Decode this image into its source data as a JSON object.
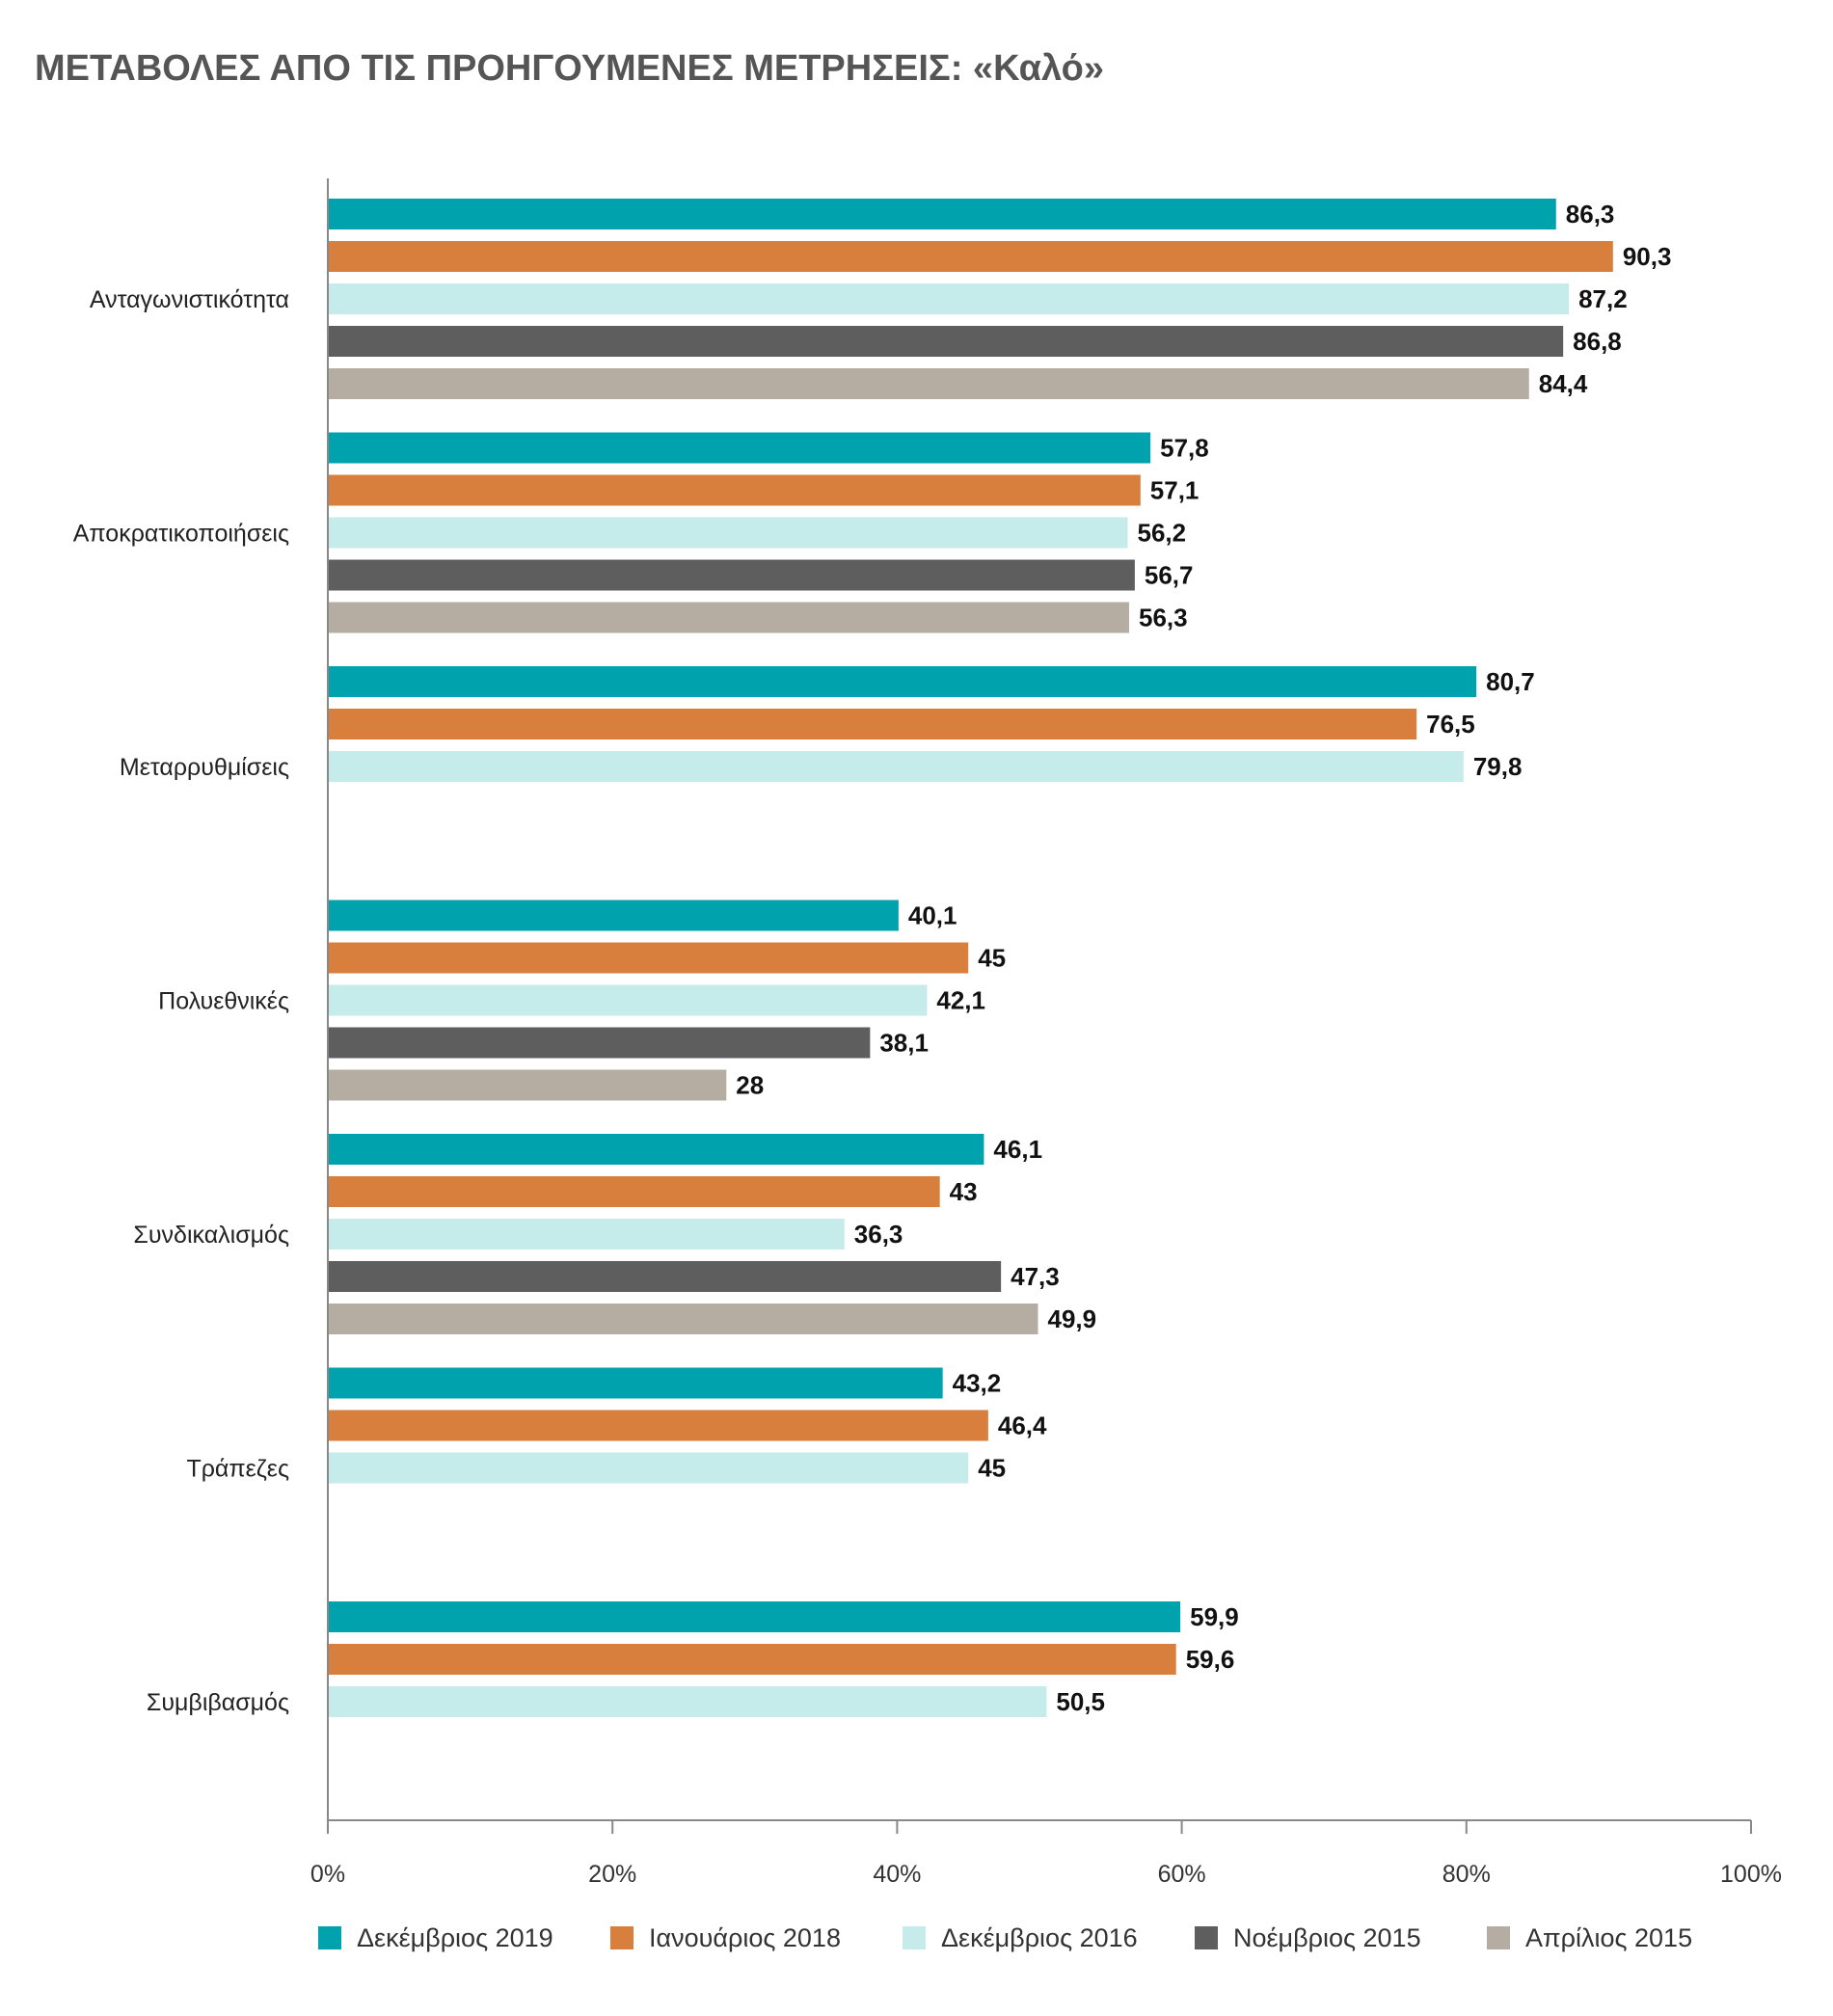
{
  "chart_data": {
    "type": "bar",
    "orientation": "horizontal",
    "title": "ΜΕΤΑΒΟΛΕΣ ΑΠΟ ΤΙΣ ΠΡΟΗΓΟΥΜΕΝΕΣ ΜΕΤΡΗΣΕΙΣ: «Καλό»",
    "categories": [
      "Ανταγωνιστικότητα",
      "Αποκρατικοποιήσεις",
      "Μεταρρυθμίσεις",
      "Πολυεθνικές",
      "Συνδικαλισμός",
      "Τράπεζες",
      "Συμβιβασμός"
    ],
    "series": [
      {
        "name": "Δεκέμβριος 2019",
        "color": "#00a3ad",
        "values": [
          86.3,
          57.8,
          80.7,
          40.1,
          46.1,
          43.2,
          59.9
        ],
        "labels": [
          "86,3",
          "57,8",
          "80,7",
          "40,1",
          "46,1",
          "43,2",
          "59,9"
        ]
      },
      {
        "name": "Ιανουάριος 2018",
        "color": "#d97f3d",
        "values": [
          90.3,
          57.1,
          76.5,
          45,
          43,
          46.4,
          59.6
        ],
        "labels": [
          "90,3",
          "57,1",
          "76,5",
          "45",
          "43",
          "46,4",
          "59,6"
        ]
      },
      {
        "name": "Δεκέμβριος 2016",
        "color": "#c5ebea",
        "values": [
          87.2,
          56.2,
          79.8,
          42.1,
          36.3,
          45,
          50.5
        ],
        "labels": [
          "87,2",
          "56,2",
          "79,8",
          "42,1",
          "36,3",
          "45",
          "50,5"
        ]
      },
      {
        "name": "Νοέμβριος 2015",
        "color": "#5e5e5e",
        "values": [
          86.8,
          56.7,
          null,
          38.1,
          47.3,
          null,
          null
        ],
        "labels": [
          "86,8",
          "56,7",
          null,
          "38,1",
          "47,3",
          null,
          null
        ]
      },
      {
        "name": "Απρίλιος 2015",
        "color": "#b5ada1",
        "values": [
          84.4,
          56.3,
          null,
          28,
          49.9,
          null,
          null
        ],
        "labels": [
          "84,4",
          "56,3",
          null,
          "28",
          "49,9",
          null,
          null
        ]
      }
    ],
    "xlim": [
      0,
      100
    ],
    "x_ticks": [
      "0%",
      "20%",
      "40%",
      "60%",
      "80%",
      "100%"
    ],
    "grid": false,
    "legend_position": "bottom"
  }
}
